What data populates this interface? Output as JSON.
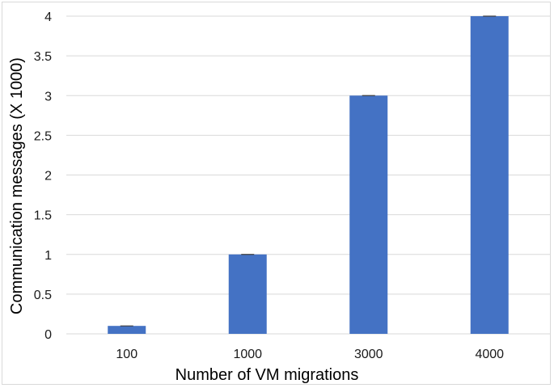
{
  "chart_data": {
    "type": "bar",
    "title": "",
    "xlabel": "Number of VM migrations",
    "ylabel": "Communication messages (X 1000)",
    "categories": [
      "100",
      "1000",
      "3000",
      "4000"
    ],
    "values": [
      0.1,
      1,
      3,
      4
    ],
    "ylim": [
      0,
      4
    ],
    "yticks": [
      "0",
      "0.5",
      "1",
      "1.5",
      "2",
      "2.5",
      "3",
      "3.5",
      "4"
    ],
    "grid": "horizontal",
    "legend": "none",
    "colors": {
      "bar": "#4472C4",
      "grid": "#d9d9d9",
      "error_bar": "#404040"
    }
  }
}
